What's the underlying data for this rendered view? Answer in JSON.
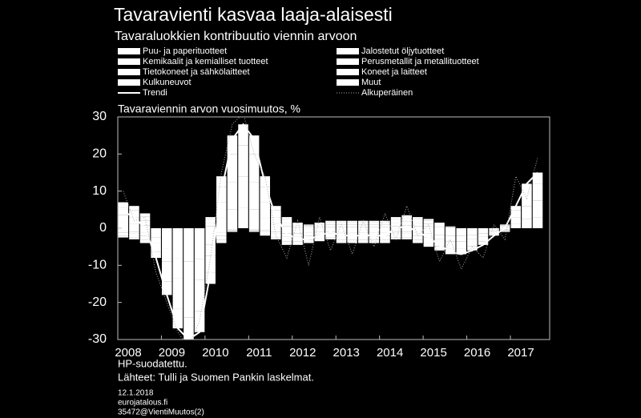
{
  "chart_data": {
    "type": "stacked-bar",
    "title": "Tavaravienti kasvaa laaja-alaisesti",
    "subtitle": "Tavaraluokkien kontribuutio viennin arvoon",
    "ylabel": "Tavaraviennin arvon vuosimuutos, %",
    "notes": [
      "HP-suodatettu.",
      "Lähteet: Tulli ja Suomen Pankin laskelmat."
    ],
    "footer": [
      "12.1.2018",
      "eurojatalous.fi",
      "35472@VientiMuutos(2)"
    ],
    "x": [
      2008.125,
      2008.375,
      2008.625,
      2008.875,
      2009.125,
      2009.375,
      2009.625,
      2009.875,
      2010.125,
      2010.375,
      2010.625,
      2010.875,
      2011.125,
      2011.375,
      2011.625,
      2011.875,
      2012.125,
      2012.375,
      2012.625,
      2012.875,
      2013.125,
      2013.375,
      2013.625,
      2013.875,
      2014.125,
      2014.375,
      2014.625,
      2014.875,
      2015.125,
      2015.375,
      2015.625,
      2015.875,
      2016.125,
      2016.375,
      2016.625,
      2016.875,
      2017.125,
      2017.375,
      2017.625
    ],
    "xlim": [
      2008,
      2017.9
    ],
    "xticks": [
      2008,
      2009,
      2010,
      2011,
      2012,
      2013,
      2014,
      2015,
      2016,
      2017
    ],
    "ylim": [
      -30,
      30
    ],
    "yticks": [
      -30,
      -20,
      -10,
      0,
      10,
      20,
      30
    ],
    "series": [
      {
        "name": "Puu- ja paperituotteet",
        "color": "#ffffff",
        "values": [
          -0.75,
          -0.9,
          -1.2,
          -2.4,
          -5.4,
          -8.1,
          -9,
          -8.4,
          -4.5,
          -1.2,
          -0.3,
          0,
          -0.3,
          -0.6,
          -0.9,
          -1.35,
          -1.35,
          -1.2,
          -1.05,
          -0.9,
          -1.2,
          -1.2,
          -1.2,
          -1.2,
          -1.2,
          -0.9,
          -0.9,
          -1.2,
          -1.5,
          -1.8,
          -2.1,
          -2.1,
          -1.8,
          -1.35,
          -0.6,
          -0.3,
          0,
          0,
          0
        ]
      },
      {
        "name": "Jalostetut öljytuotteet",
        "color": "#ffffff",
        "values": [
          -0.5,
          -0.6,
          -0.8,
          -1.6,
          -3.6,
          -5.4,
          -6,
          -5.6,
          -3,
          -0.8,
          -0.2,
          0,
          -0.2,
          -0.4,
          -0.6,
          -0.9,
          -0.9,
          -0.8,
          -0.7,
          -0.6,
          -0.8,
          -0.8,
          -0.8,
          -0.8,
          -0.8,
          -0.6,
          -0.6,
          -0.8,
          -1,
          -1.2,
          -1.4,
          -1.4,
          -1.2,
          -0.9,
          -0.4,
          -0.2,
          0,
          0,
          0
        ]
      },
      {
        "name": "Kemikaalit ja kemialliset tuotteet",
        "color": "#ffffff",
        "values": [
          1.4,
          1.2,
          0.8,
          0,
          0,
          0,
          0,
          0,
          0.6,
          2.8,
          5,
          5.6,
          5,
          2.8,
          1.2,
          0.6,
          0.3,
          0.2,
          0.3,
          0.4,
          0.4,
          0.4,
          0.4,
          0.4,
          0.4,
          0.6,
          0.7,
          0.6,
          0.5,
          0.3,
          0.1,
          0,
          0,
          0,
          0,
          0.2,
          1.2,
          2.4,
          3
        ]
      },
      {
        "name": "Perusmetallit ja metallituotteet",
        "color": "#ffffff",
        "values": [
          2.1,
          1.8,
          1.2,
          0,
          0,
          0,
          0,
          0,
          0.9,
          4.2,
          7.5,
          8.4,
          7.5,
          4.2,
          1.8,
          0.9,
          0.45,
          0.3,
          0.45,
          0.6,
          0.6,
          0.6,
          0.6,
          0.6,
          0.6,
          0.9,
          1.05,
          0.9,
          0.75,
          0.45,
          0.15,
          0,
          0,
          0,
          0,
          0.3,
          1.8,
          3.6,
          4.5
        ]
      },
      {
        "name": "Tietokoneet ja sähkölaitteet",
        "color": "#ffffff",
        "values": [
          -0.75,
          -0.9,
          -1.2,
          -2.4,
          -5.4,
          -8.1,
          -9,
          -8.4,
          -4.5,
          -1.2,
          -0.3,
          0,
          -0.3,
          -0.6,
          -0.9,
          -1.35,
          -1.35,
          -1.2,
          -1.05,
          -0.9,
          -1.2,
          -1.2,
          -1.2,
          -1.2,
          -1.2,
          -0.9,
          -0.9,
          -1.2,
          -1.5,
          -1.8,
          -2.1,
          -2.1,
          -1.8,
          -1.35,
          -0.6,
          -0.3,
          0,
          0,
          0
        ]
      },
      {
        "name": "Koneet ja laitteet",
        "color": "#ffffff",
        "values": [
          2.1,
          1.8,
          1.2,
          0,
          0,
          0,
          0,
          0,
          0.9,
          4.2,
          7.5,
          8.4,
          7.5,
          4.2,
          1.8,
          0.9,
          0.45,
          0.3,
          0.45,
          0.6,
          0.6,
          0.6,
          0.6,
          0.6,
          0.6,
          0.9,
          1.05,
          0.9,
          0.75,
          0.45,
          0.15,
          0,
          0,
          0,
          0,
          0.3,
          1.8,
          3.6,
          4.5
        ]
      },
      {
        "name": "Kulkuneuvot",
        "color": "#ffffff",
        "values": [
          -0.5,
          -0.6,
          -0.8,
          -1.6,
          -3.6,
          -5.4,
          -6,
          -5.6,
          -3,
          -0.8,
          -0.2,
          0,
          -0.2,
          -0.4,
          -0.6,
          -0.9,
          -0.9,
          -0.8,
          -0.7,
          -0.6,
          -0.8,
          -0.8,
          -0.8,
          -0.8,
          -0.8,
          -0.6,
          -0.6,
          -0.8,
          -1,
          -1.2,
          -1.4,
          -1.4,
          -1.2,
          -0.9,
          -0.4,
          -0.2,
          0,
          0,
          0
        ]
      },
      {
        "name": "Muut",
        "color": "#ffffff",
        "values": [
          1.4,
          1.2,
          0.8,
          0,
          0,
          0,
          0,
          0,
          0.6,
          2.8,
          5,
          5.6,
          5,
          2.8,
          1.2,
          0.6,
          0.3,
          0.2,
          0.3,
          0.4,
          0.4,
          0.4,
          0.4,
          0.4,
          0.4,
          0.6,
          0.7,
          0.6,
          0.5,
          0.3,
          0.1,
          0,
          0,
          0,
          0,
          0.2,
          1.2,
          2.4,
          3
        ]
      }
    ],
    "lines": [
      {
        "name": "Trendi",
        "color": "#ffffff",
        "style": "solid",
        "values": [
          4.5,
          3,
          0,
          -8,
          -18,
          -27,
          -30,
          -28,
          -12,
          10,
          24,
          28,
          24,
          12,
          3,
          -1.5,
          -3,
          -3,
          -2,
          -1,
          -2,
          -2,
          -2,
          -2,
          -2,
          0,
          0.5,
          -1,
          -2.5,
          -4.5,
          -6.5,
          -7,
          -6,
          -4.5,
          -2,
          0,
          6,
          12,
          15
        ]
      },
      {
        "name": "Alkuperäinen",
        "color": "#aaaaaa",
        "style": "dotted",
        "values": [
          10,
          2,
          3,
          -12,
          -20,
          -28,
          -32,
          -25,
          -8,
          15,
          28,
          31,
          20,
          14,
          -2,
          -8,
          2,
          -10,
          3,
          -6,
          1,
          -7,
          2,
          -5,
          4,
          -3,
          6,
          -2,
          1,
          -9,
          -3,
          -11,
          -5,
          -8,
          1,
          -3,
          14,
          8,
          19
        ]
      }
    ]
  }
}
